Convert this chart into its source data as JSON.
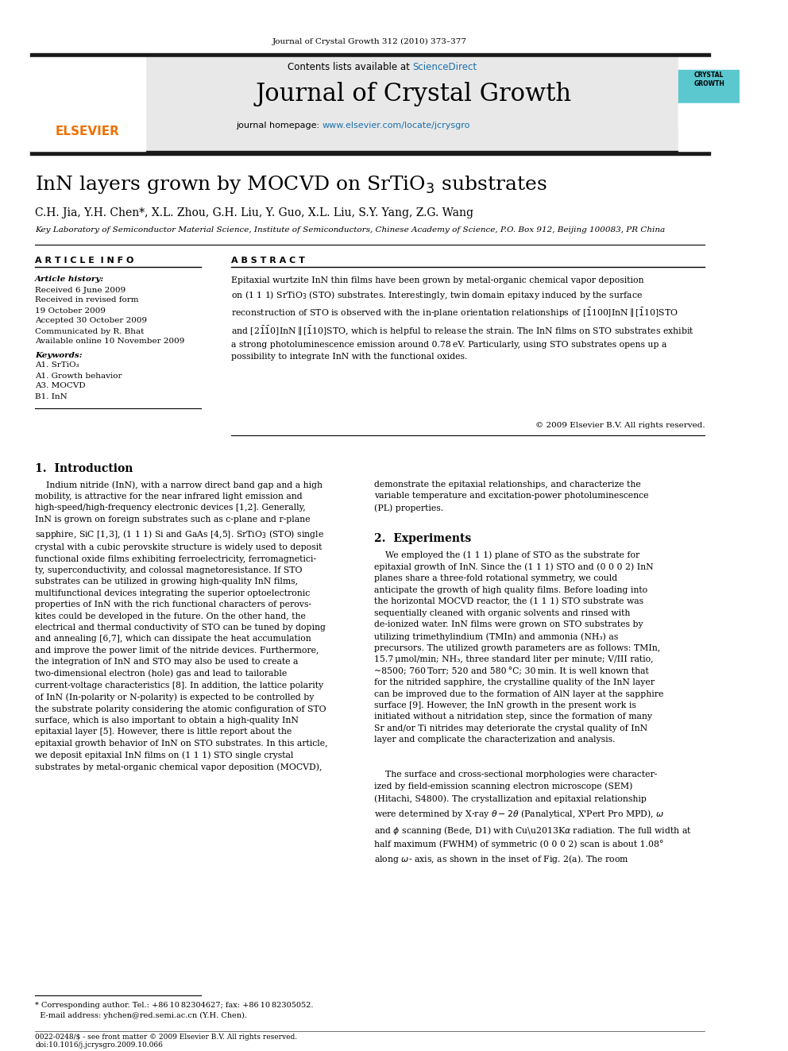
{
  "journal_header": "Journal of Crystal Growth 312 (2010) 373–377",
  "journal_name": "Journal of Crystal Growth",
  "contents_line": "Contents lists available at ScienceDirect",
  "journal_homepage": "journal homepage: www.elsevier.com/locate/jcrysgro",
  "title": "InN layers grown by MOCVD on SrTiO₃ substrates",
  "authors": "C.H. Jia, Y.H. Chen*, X.L. Zhou, G.H. Liu, Y. Guo, X.L. Liu, S.Y. Yang, Z.G. Wang",
  "affiliation": "Key Laboratory of Semiconductor Material Science, Institute of Semiconductors, Chinese Academy of Science, P.O. Box 912, Beijing 100083, PR China",
  "article_info_header": "A R T I C L E  I N F O",
  "abstract_header": "A B S T R A C T",
  "article_history_label": "Article history:",
  "article_history": [
    "Received 6 June 2009",
    "Received in revised form",
    "19 October 2009",
    "Accepted 30 October 2009",
    "Communicated by R. Bhat",
    "Available online 10 November 2009"
  ],
  "keywords_label": "Keywords:",
  "keywords": [
    "A1. SrTiO₃",
    "A1. Growth behavior",
    "A3. MOCVD",
    "B1. InN"
  ],
  "copyright": "© 2009 Elsevier B.V. All rights reserved.",
  "bg_header_color": "#e8e8e8",
  "elsevier_color": "#f07000",
  "blue_color": "#1a6faf",
  "header_bar_color": "#1a1a1a",
  "cyan_color": "#5bc8d0"
}
